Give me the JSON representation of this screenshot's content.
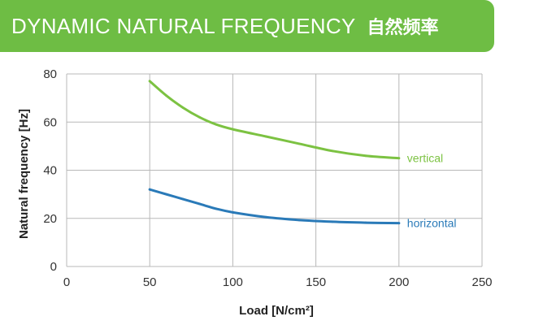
{
  "header": {
    "title": "DYNAMIC NATURAL FREQUENCY",
    "subtitle": "自然频率"
  },
  "colors": {
    "banner": "#6ebd44",
    "vertical": "#7cc242",
    "horizontal": "#2a7ab8",
    "grid": "#b8b8b8",
    "text": "#222222"
  },
  "chart_data": {
    "type": "line",
    "title": "",
    "xlabel": "Load [N/cm²]",
    "ylabel": "Natural frequency [Hz]",
    "xlim": [
      0,
      250
    ],
    "ylim": [
      0,
      80
    ],
    "xticks": [
      0,
      50,
      100,
      150,
      200,
      250
    ],
    "yticks": [
      0,
      20,
      40,
      60,
      80
    ],
    "grid": true,
    "legend": "inline labels at line ends",
    "series": [
      {
        "name": "vertical",
        "color": "#7cc242",
        "x": [
          50,
          60,
          70,
          80,
          90,
          100,
          120,
          140,
          160,
          180,
          200
        ],
        "y": [
          77,
          71,
          66,
          62,
          59,
          57,
          54,
          51,
          48,
          46,
          45
        ]
      },
      {
        "name": "horizontal",
        "color": "#2a7ab8",
        "x": [
          50,
          60,
          70,
          80,
          90,
          100,
          120,
          140,
          160,
          180,
          200
        ],
        "y": [
          32,
          30,
          28,
          26,
          24,
          22.5,
          20.5,
          19.3,
          18.6,
          18.2,
          18
        ]
      }
    ]
  }
}
